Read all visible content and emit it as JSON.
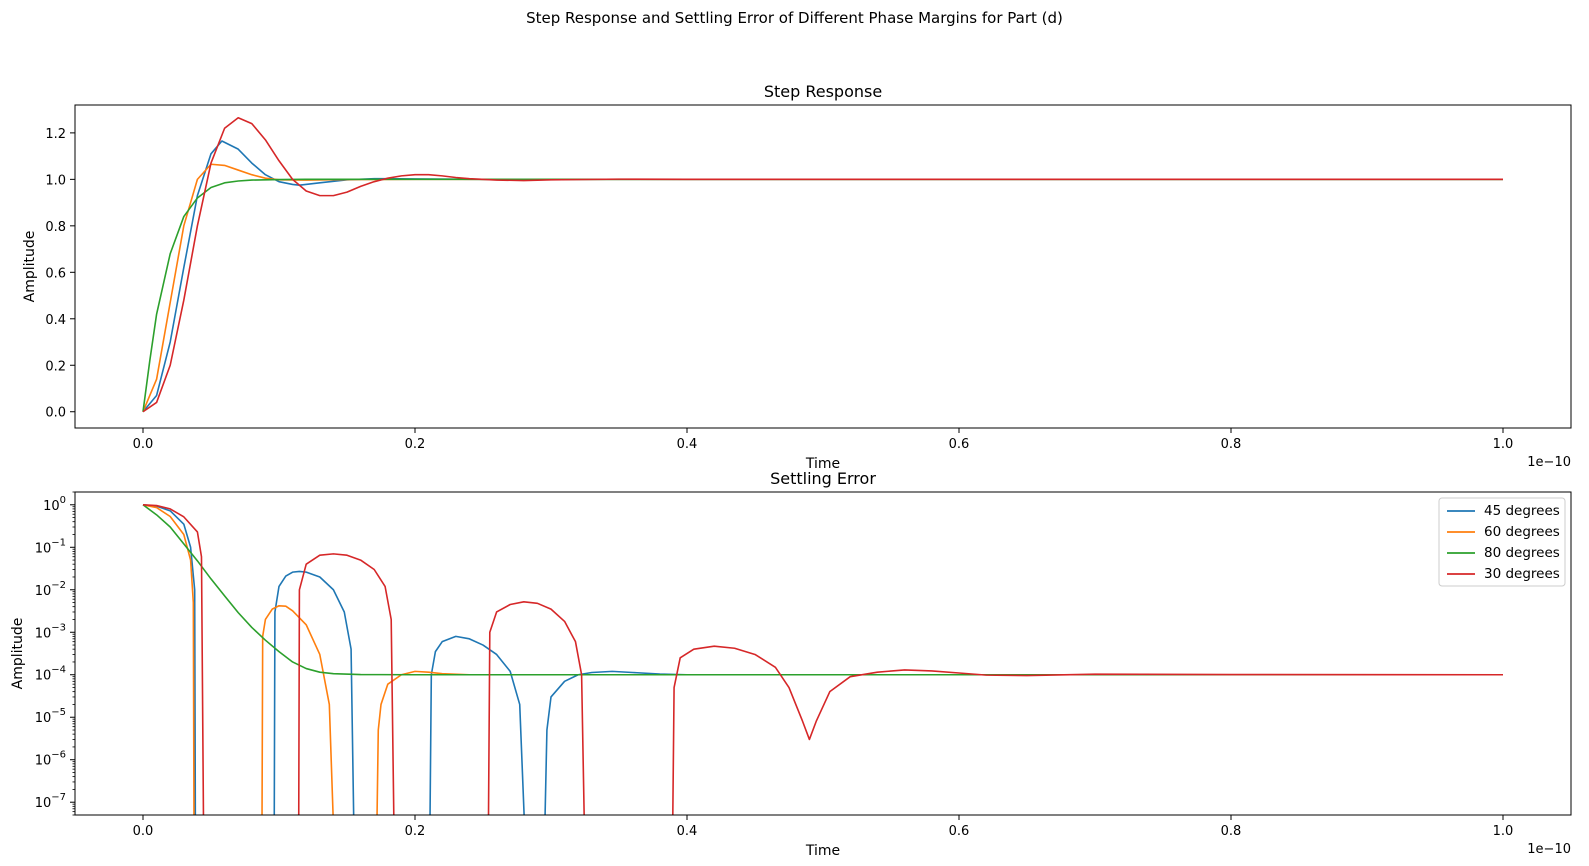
{
  "figure_title": "Step Response and Settling Error of Different Phase Margins for Part (d)",
  "chart_data": [
    {
      "type": "line",
      "title": "Step Response",
      "xlabel": "Time",
      "ylabel": "Amplitude",
      "x_offset_label": "1e−10",
      "xlim": [
        -0.05,
        1.05
      ],
      "ylim": [
        -0.07,
        1.32
      ],
      "xticks": [
        0.0,
        0.2,
        0.4,
        0.6,
        0.8,
        1.0
      ],
      "xtick_labels": [
        "0.0",
        "0.2",
        "0.4",
        "0.6",
        "0.8",
        "1.0"
      ],
      "yticks": [
        0.0,
        0.2,
        0.4,
        0.6,
        0.8,
        1.0,
        1.2
      ],
      "ytick_labels": [
        "0.0",
        "0.2",
        "0.4",
        "0.6",
        "0.8",
        "1.0",
        "1.2"
      ],
      "yscale": "linear",
      "grid": false,
      "series": [
        {
          "name": "45 degrees",
          "color": "#1f77b4",
          "x": [
            0,
            0.01,
            0.02,
            0.03,
            0.04,
            0.05,
            0.058,
            0.07,
            0.08,
            0.09,
            0.1,
            0.11,
            0.115,
            0.13,
            0.15,
            0.17,
            0.2,
            0.25,
            0.3,
            1.0
          ],
          "y": [
            0,
            0.07,
            0.3,
            0.62,
            0.93,
            1.11,
            1.165,
            1.13,
            1.07,
            1.02,
            0.99,
            0.978,
            0.975,
            0.985,
            0.998,
            1.003,
            1.002,
            1.0,
            1.0,
            1.0
          ]
        },
        {
          "name": "60 degrees",
          "color": "#ff7f0e",
          "x": [
            0,
            0.01,
            0.02,
            0.03,
            0.04,
            0.05,
            0.06,
            0.07,
            0.08,
            0.09,
            0.1,
            0.12,
            0.15,
            0.2,
            0.25,
            0.3,
            1.0
          ],
          "y": [
            0,
            0.14,
            0.47,
            0.8,
            1.0,
            1.065,
            1.06,
            1.04,
            1.02,
            1.005,
            0.998,
            0.997,
            0.999,
            1.0,
            1.0,
            1.0,
            1.0
          ]
        },
        {
          "name": "80 degrees",
          "color": "#2ca02c",
          "x": [
            0,
            0.005,
            0.01,
            0.02,
            0.03,
            0.04,
            0.05,
            0.06,
            0.07,
            0.08,
            0.1,
            0.12,
            0.15,
            0.2,
            0.3,
            1.0
          ],
          "y": [
            0,
            0.22,
            0.42,
            0.68,
            0.84,
            0.92,
            0.965,
            0.985,
            0.993,
            0.997,
            0.999,
            1.0,
            1.0,
            1.0,
            1.0,
            1.0
          ]
        },
        {
          "name": "30 degrees",
          "color": "#d62728",
          "x": [
            0,
            0.01,
            0.02,
            0.03,
            0.04,
            0.05,
            0.06,
            0.07,
            0.08,
            0.09,
            0.1,
            0.11,
            0.12,
            0.13,
            0.14,
            0.15,
            0.16,
            0.17,
            0.18,
            0.19,
            0.2,
            0.21,
            0.22,
            0.23,
            0.24,
            0.26,
            0.28,
            0.3,
            0.35,
            0.4,
            1.0
          ],
          "y": [
            0,
            0.04,
            0.2,
            0.48,
            0.8,
            1.07,
            1.22,
            1.265,
            1.24,
            1.17,
            1.08,
            1.0,
            0.95,
            0.93,
            0.93,
            0.945,
            0.97,
            0.99,
            1.005,
            1.015,
            1.02,
            1.02,
            1.015,
            1.008,
            1.003,
            0.997,
            0.995,
            0.998,
            1.001,
            1.0,
            1.0
          ]
        }
      ]
    },
    {
      "type": "line",
      "title": "Settling Error",
      "xlabel": "Time",
      "ylabel": "Amplitude",
      "x_offset_label": "1e−10",
      "xlim": [
        -0.05,
        1.05
      ],
      "yscale": "log",
      "ylim": [
        5e-08,
        2
      ],
      "xticks": [
        0.0,
        0.2,
        0.4,
        0.6,
        0.8,
        1.0
      ],
      "xtick_labels": [
        "0.0",
        "0.2",
        "0.4",
        "0.6",
        "0.8",
        "1.0"
      ],
      "ytick_exponents": [
        0,
        -1,
        -2,
        -3,
        -4,
        -5,
        -6,
        -7
      ],
      "ytick_base": "10",
      "grid": false,
      "legend_position": "top-right",
      "series": [
        {
          "name": "45 degrees",
          "color": "#1f77b4",
          "x": [
            0,
            0.01,
            0.02,
            0.03,
            0.035,
            0.038,
            0.0385,
            null,
            0.0965,
            0.097,
            0.1,
            0.105,
            0.11,
            0.115,
            0.12,
            0.13,
            0.14,
            0.148,
            0.153,
            0.155,
            null,
            0.211,
            0.212,
            0.215,
            0.22,
            0.23,
            0.24,
            0.25,
            0.26,
            0.27,
            0.277,
            0.2805,
            null,
            0.2955,
            0.297,
            0.3,
            0.31,
            0.32,
            0.33,
            0.345,
            0.36,
            0.38,
            0.4,
            0.5,
            1.0
          ],
          "y": [
            1,
            0.93,
            0.72,
            0.35,
            0.1,
            0.01,
            3e-08,
            null,
            3e-08,
            0.003,
            0.012,
            0.021,
            0.026,
            0.027,
            0.026,
            0.02,
            0.01,
            0.003,
            0.0004,
            3e-08,
            null,
            3e-08,
            0.0001,
            0.00035,
            0.0006,
            0.0008,
            0.0007,
            0.0005,
            0.0003,
            0.00012,
            2e-05,
            3e-08,
            null,
            3e-08,
            5e-06,
            3e-05,
            7e-05,
            0.0001,
            0.000113,
            0.00012,
            0.000113,
            0.000104,
            0.0001,
            0.0001,
            0.0001
          ]
        },
        {
          "name": "60 degrees",
          "color": "#ff7f0e",
          "x": [
            0,
            0.01,
            0.02,
            0.03,
            0.035,
            0.037,
            0.0375,
            null,
            0.0875,
            0.088,
            0.09,
            0.095,
            0.1,
            0.105,
            0.11,
            0.12,
            0.13,
            0.137,
            0.14,
            null,
            0.172,
            0.173,
            0.175,
            0.18,
            0.19,
            0.2,
            0.21,
            0.22,
            0.24,
            0.3,
            1.0
          ],
          "y": [
            1,
            0.86,
            0.53,
            0.2,
            0.05,
            0.005,
            3e-08,
            null,
            3e-08,
            0.0008,
            0.002,
            0.0035,
            0.0042,
            0.0041,
            0.0032,
            0.0015,
            0.0003,
            2e-05,
            3e-08,
            null,
            3e-08,
            5e-06,
            2e-05,
            6e-05,
            0.0001,
            0.00012,
            0.000115,
            0.000106,
            0.0001,
            0.0001,
            0.0001
          ]
        },
        {
          "name": "80 degrees",
          "color": "#2ca02c",
          "x": [
            0,
            0.01,
            0.02,
            0.03,
            0.04,
            0.05,
            0.06,
            0.07,
            0.08,
            0.09,
            0.1,
            0.11,
            0.12,
            0.13,
            0.14,
            0.16,
            0.2,
            0.3,
            1.0
          ],
          "y": [
            1,
            0.58,
            0.3,
            0.12,
            0.048,
            0.018,
            0.0072,
            0.0029,
            0.0013,
            0.00065,
            0.00035,
            0.0002,
            0.00014,
            0.000115,
            0.000106,
            0.000101,
            0.0001,
            0.0001,
            0.0001
          ]
        },
        {
          "name": "30 degrees",
          "color": "#d62728",
          "x": [
            0,
            0.01,
            0.02,
            0.03,
            0.04,
            0.043,
            0.0445,
            null,
            0.1145,
            0.115,
            0.12,
            0.13,
            0.14,
            0.15,
            0.16,
            0.17,
            0.178,
            0.1825,
            0.1845,
            null,
            0.254,
            0.255,
            0.26,
            0.27,
            0.28,
            0.29,
            0.3,
            0.31,
            0.318,
            0.3225,
            0.3245,
            null,
            0.3895,
            0.3905,
            0.395,
            0.405,
            0.42,
            0.435,
            0.45,
            0.465,
            0.475,
            0.485,
            0.49,
            0.495,
            0.505,
            0.52,
            0.54,
            0.56,
            0.58,
            0.6,
            0.62,
            0.65,
            0.7,
            0.8,
            1.0
          ],
          "y": [
            1,
            0.96,
            0.8,
            0.52,
            0.23,
            0.06,
            3e-08,
            null,
            3e-08,
            0.01,
            0.04,
            0.065,
            0.07,
            0.065,
            0.05,
            0.03,
            0.012,
            0.002,
            3e-08,
            null,
            3e-08,
            0.001,
            0.003,
            0.0045,
            0.0052,
            0.0048,
            0.0035,
            0.0018,
            0.0006,
            0.0001,
            3e-08,
            null,
            3e-08,
            5e-05,
            0.00025,
            0.0004,
            0.00047,
            0.00042,
            0.0003,
            0.00015,
            5e-05,
            8e-06,
            3e-06,
            8e-06,
            4e-05,
            9e-05,
            0.000115,
            0.00013,
            0.000123,
            0.00011,
            9.8e-05,
            9.55e-05,
            0.000103,
            0.000101,
            0.0001
          ]
        }
      ]
    }
  ]
}
